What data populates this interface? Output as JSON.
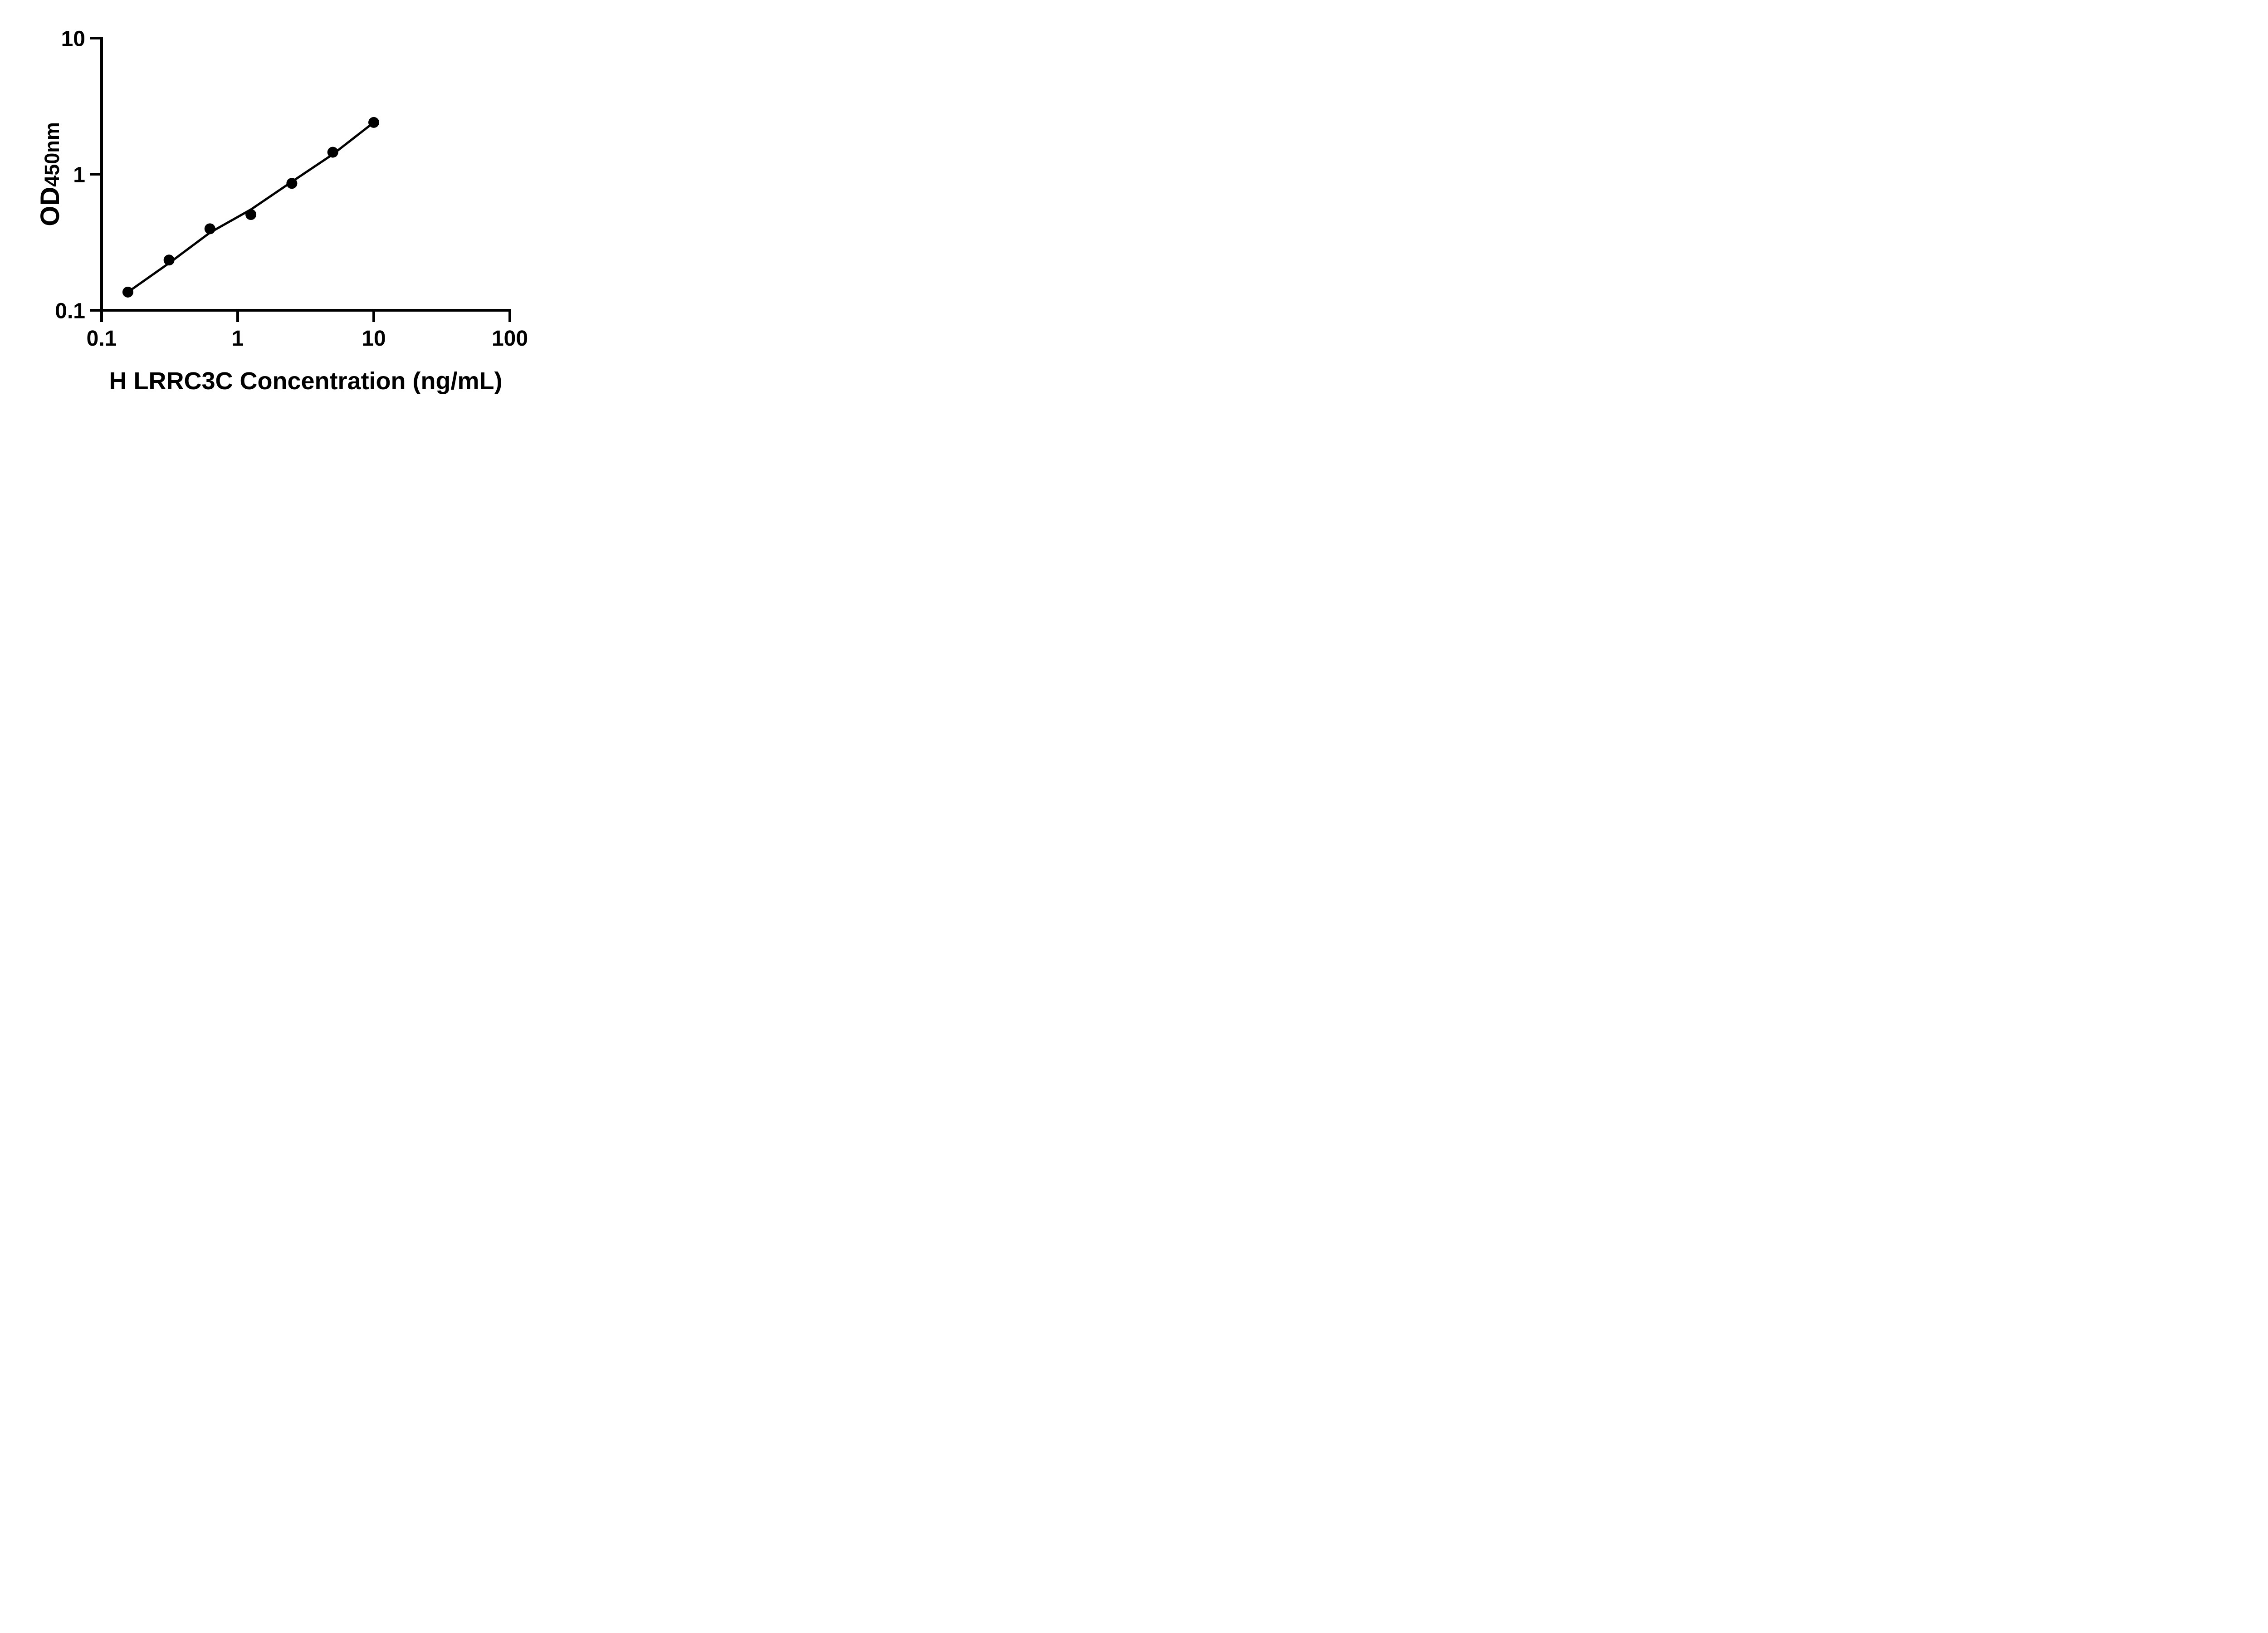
{
  "figure": {
    "background_color": "#ffffff",
    "ink_color": "#000000"
  },
  "chart_data": {
    "type": "scatter",
    "title": "",
    "xlabel": "H LRRC3C Concentration (ng/mL)",
    "ylabel": "OD450nm",
    "ylabel_main": "OD",
    "ylabel_sub": "450nm",
    "x_scale": "log10",
    "y_scale": "log10",
    "xlim": [
      0.1,
      100
    ],
    "ylim": [
      0.1,
      10
    ],
    "x_ticks": [
      0.1,
      1,
      10,
      100
    ],
    "x_tick_labels": [
      "0.1",
      "1",
      "10",
      "100"
    ],
    "y_ticks": [
      0.1,
      1,
      10
    ],
    "y_tick_labels": [
      "0.1",
      "1",
      "10"
    ],
    "grid": false,
    "legend": null,
    "series": [
      {
        "name": "fitted-curve",
        "type": "line",
        "color": "#000000",
        "x": [
          0.156,
          0.313,
          0.625,
          1.25,
          2.5,
          5,
          10
        ],
        "y": [
          0.136,
          0.222,
          0.372,
          0.55,
          0.88,
          1.4,
          2.4
        ]
      },
      {
        "name": "standard-points",
        "type": "scatter",
        "marker": "filled-circle",
        "color": "#000000",
        "x": [
          0.156,
          0.313,
          0.625,
          1.25,
          2.5,
          5,
          10
        ],
        "y": [
          0.136,
          0.234,
          0.397,
          0.505,
          0.856,
          1.45,
          2.4
        ]
      }
    ]
  }
}
